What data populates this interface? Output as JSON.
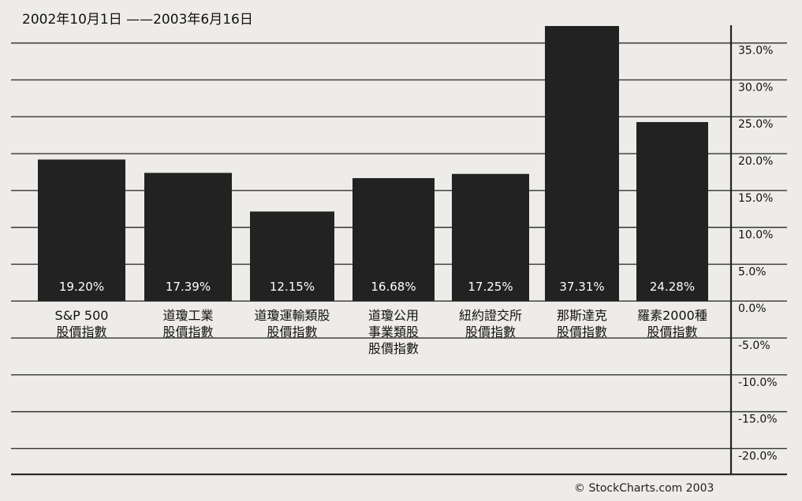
{
  "chart_data": {
    "type": "bar",
    "title": "2002年10月1日 ——2003年6月16日",
    "categories": [
      [
        "S&P 500",
        "股價指數"
      ],
      [
        "道瓊工業",
        "股價指數"
      ],
      [
        "道瓊運輸類股",
        "股價指數"
      ],
      [
        "道瓊公用",
        "事業類股",
        "股價指數"
      ],
      [
        "紐約證交所",
        "股價指數"
      ],
      [
        "那斯達克",
        "股價指數"
      ],
      [
        "羅素2000種",
        "股價指數"
      ]
    ],
    "values": [
      19.2,
      17.39,
      12.15,
      16.68,
      17.25,
      37.31,
      24.28
    ],
    "value_labels": [
      "19.20%",
      "17.39%",
      "12.15%",
      "16.68%",
      "17.25%",
      "37.31%",
      "24.28%"
    ],
    "yticks": [
      35.0,
      30.0,
      25.0,
      20.0,
      15.0,
      10.0,
      5.0,
      0.0,
      -5.0,
      -10.0,
      -15.0,
      -20.0
    ],
    "ytick_labels": [
      "35.0%",
      "30.0%",
      "25.0%",
      "20.0%",
      "15.0%",
      "10.0%",
      "5.0%",
      "0.0%",
      "-5.0%",
      "-10.0%",
      "-15.0%",
      "-20.0%"
    ],
    "ylim": [
      -23.5,
      37.31
    ],
    "grid": true,
    "yaxis_side": "right",
    "bar_color": "#222222",
    "value_label_color": "#ffffff"
  },
  "credit": "© StockCharts.com 2003"
}
